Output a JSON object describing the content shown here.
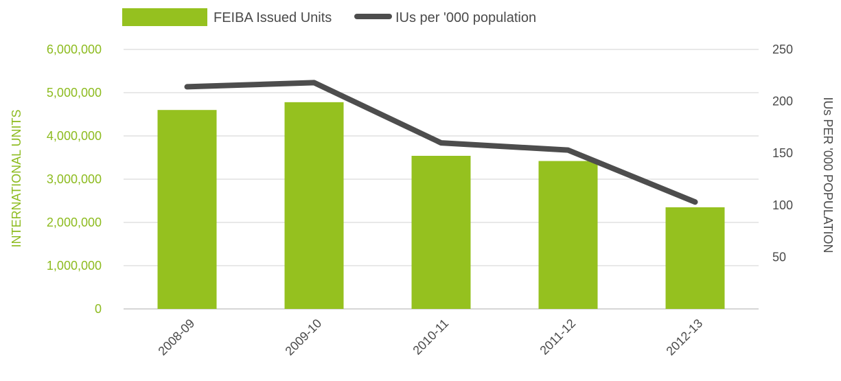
{
  "chart_data": {
    "type": "bar",
    "categories": [
      "2008-09",
      "2009-10",
      "2010-11",
      "2011-12",
      "2012-13"
    ],
    "series": [
      {
        "name": "FEIBA Issued Units",
        "type": "bar",
        "axis": "left",
        "color": "#95c11f",
        "values": [
          4600000,
          4780000,
          3540000,
          3420000,
          2350000
        ]
      },
      {
        "name": "IUs per '000 population",
        "type": "line",
        "axis": "right",
        "color": "#4d4d4d",
        "values": [
          214,
          218,
          160,
          153,
          103
        ]
      }
    ],
    "ylabel": "INTERNATIONAL UNITS",
    "y2label": "IUs PER '000 POPULATION",
    "ylim": [
      0,
      6000000
    ],
    "y2lim": [
      0,
      250
    ],
    "yticks": [
      "0",
      "1,000,000",
      "2,000,000",
      "3,000,000",
      "4,000,000",
      "5,000,000",
      "6,000,000"
    ],
    "y2ticks": [
      "50",
      "100",
      "150",
      "200",
      "250"
    ],
    "y2tick_values": [
      50,
      100,
      150,
      200,
      250
    ],
    "grid": true,
    "legend_position": "top-left"
  }
}
